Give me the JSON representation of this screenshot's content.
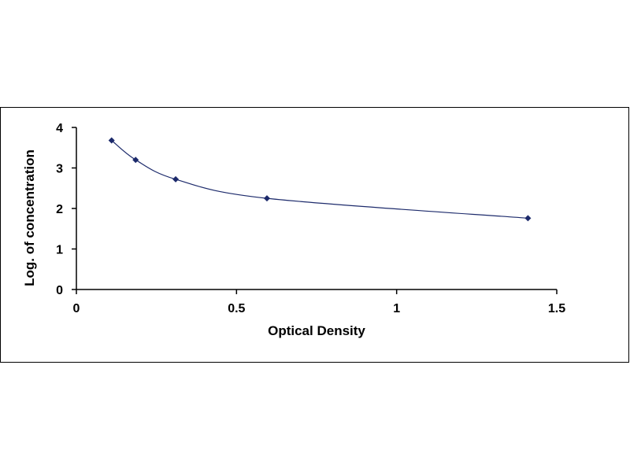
{
  "chart_data": {
    "type": "scatter",
    "title": "",
    "xlabel": "Optical Density",
    "ylabel": "Log. of concentration",
    "xlim": [
      0,
      1.5
    ],
    "ylim": [
      0,
      4
    ],
    "xticks": [
      0,
      0.5,
      1,
      1.5
    ],
    "xtick_labels": [
      "0",
      "0.5",
      "1",
      "1.5"
    ],
    "yticks": [
      0,
      1,
      2,
      3,
      4
    ],
    "ytick_labels": [
      "0",
      "1",
      "2",
      "3",
      "4"
    ],
    "grid": false,
    "legend": false,
    "series": [
      {
        "points": [
          {
            "x": 0.11,
            "y": 3.68
          },
          {
            "x": 0.185,
            "y": 3.2
          },
          {
            "x": 0.31,
            "y": 2.72
          },
          {
            "x": 0.595,
            "y": 2.25
          },
          {
            "x": 1.41,
            "y": 1.76
          }
        ],
        "marker": "diamond",
        "color": "#1c2a6b",
        "line": "smooth"
      }
    ]
  }
}
